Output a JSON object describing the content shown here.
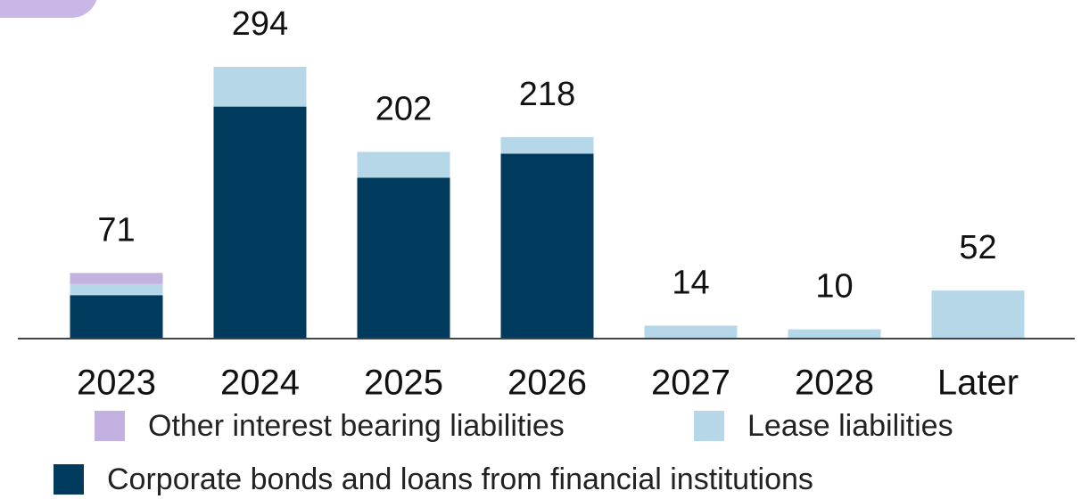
{
  "chart_data": {
    "type": "stacked-bar",
    "categories": [
      "2023",
      "2024",
      "2025",
      "2026",
      "2027",
      "2028",
      "Later"
    ],
    "series": [
      {
        "name": "Corporate bonds and loans from financial institutions",
        "color": "#003a5d",
        "values": [
          47,
          251,
          174,
          200,
          0,
          0,
          0
        ]
      },
      {
        "name": "Lease liabilities",
        "color": "#b6d7e8",
        "values": [
          12,
          43,
          28,
          18,
          14,
          10,
          52
        ]
      },
      {
        "name": "Other interest bearing liabilities",
        "color": "#c3b1e1",
        "values": [
          12,
          0,
          0,
          0,
          0,
          0,
          0
        ]
      }
    ],
    "totals": [
      71,
      294,
      202,
      218,
      14,
      10,
      52
    ]
  }
}
